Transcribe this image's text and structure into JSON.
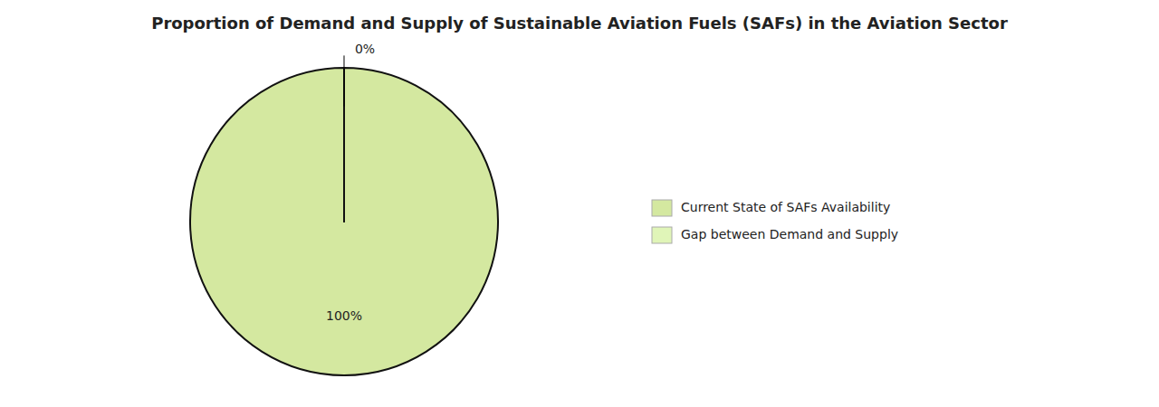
{
  "chart_data": {
    "type": "pie",
    "title": "Proportion of Demand and Supply of Sustainable Aviation Fuels (SAFs) in the Aviation Sector",
    "categories": [
      "Current State of SAFs Availability",
      "Gap between Demand and Supply"
    ],
    "values": [
      99.9999,
      0.0001
    ],
    "value_labels": [
      "100%",
      "0%"
    ],
    "colors": [
      "#d4e8a0",
      "#e0f5b8"
    ],
    "data_labels": true,
    "legend": "right"
  }
}
